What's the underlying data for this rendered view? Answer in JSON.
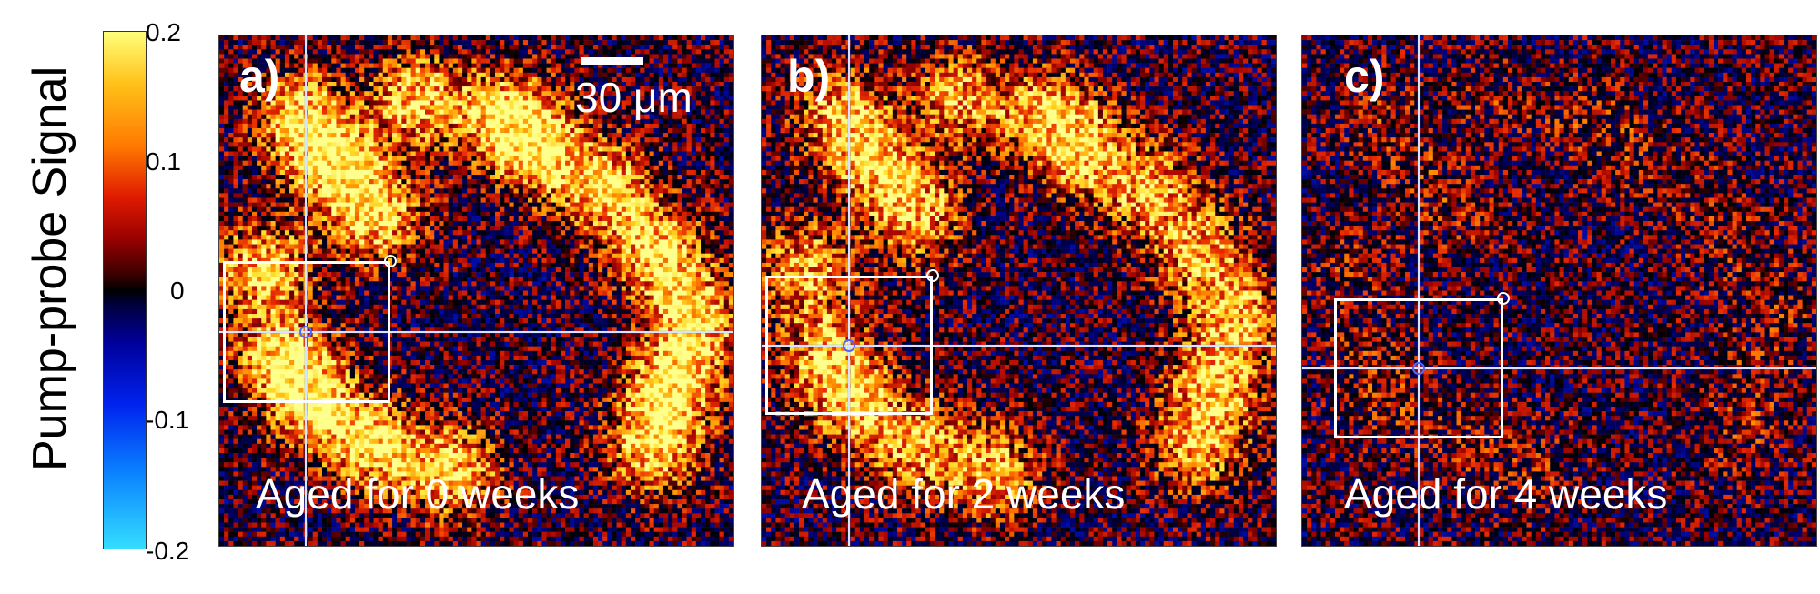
{
  "colorbar": {
    "title": "Pump-probe Signal",
    "ticks": [
      "0.2",
      "0.1",
      "0",
      "-0.1",
      "-0.2"
    ],
    "range": [
      -0.2,
      0.2
    ]
  },
  "panels": [
    {
      "label": "a)",
      "caption": "Aged for 0 weeks",
      "brightness": 1.0
    },
    {
      "label": "b)",
      "caption": "Aged for 2 weeks",
      "brightness": 0.85
    },
    {
      "label": "c)",
      "caption": "Aged for 4 weeks",
      "brightness": 0.2
    }
  ],
  "scale_bar": {
    "label": "30 μm"
  }
}
